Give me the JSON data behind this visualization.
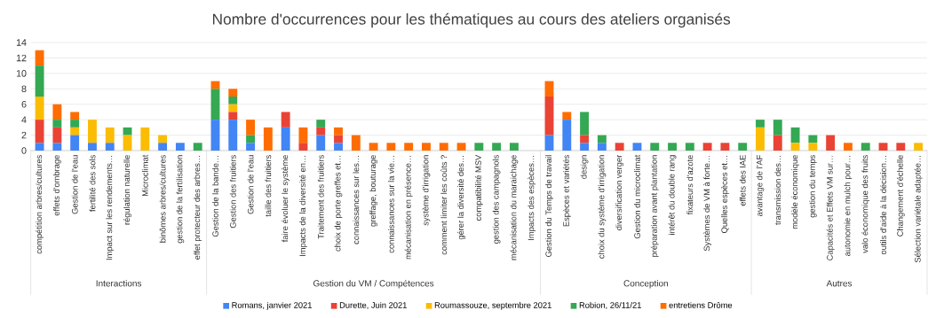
{
  "chart_data": {
    "type": "bar",
    "stacked": true,
    "title": "Nombre d'occurrences pour les thématiques au cours des ateliers organisés",
    "categories": [
      "compétition arbres/cultures",
      "effets d'ombrage",
      "Gestion de l'eau",
      "fertilité des sols",
      "Impact sur les rendements…",
      "régulation naturelle",
      "Microclimat",
      "binômes arbres/cultures",
      "gestion de la fertilisation",
      "effet protecteur des arbres…",
      "Gestion de la bande…",
      "Gestion des fruitiers",
      "Gestion de l'eau",
      "taille des fruitiers",
      "faire évoluer le système",
      "Impacts de la diversité en…",
      "Traitement des fruitiers",
      "choix de porte greffes et…",
      "connaissances sur les…",
      "greffage, bouturage",
      "connaissances sur la vie…",
      "mécanisation en présence…",
      "système d'irrigation",
      "comment limiter les coûts ?",
      "gérer la diversité des…",
      "compatibilité MSV",
      "gestion des campagnols",
      "mécanisation du maraichage",
      "Impacts des espèces…",
      "Gestion du Temps de travail",
      "Espèces et variétés",
      "design",
      "choix du système d'irrigation",
      "diversification verger",
      "Gestion du microclimat",
      "préparation avant plantation",
      "intérêt du double rang",
      "fixateurs d'azote",
      "Systèmes de VM à forte…",
      "Quelles espèces et…",
      "effets des IAE",
      "avantage de l'AF",
      "transmission des…",
      "modèle économique",
      "gestion du temps",
      "Capacités et Effets VM sur…",
      "autonomie en mulch pour…",
      "valo économique des fruits",
      "outils d'aide à la décision…",
      "Changement d'échelle",
      "Sélection variétale adaptée…"
    ],
    "series": [
      {
        "name": "Romans, janvier 2021",
        "color": "#4285f4",
        "values": [
          1,
          1,
          2,
          1,
          1,
          0,
          0,
          1,
          1,
          0,
          4,
          4,
          1,
          0,
          3,
          0,
          2,
          1,
          0,
          0,
          0,
          0,
          0,
          0,
          0,
          0,
          0,
          0,
          0,
          2,
          4,
          1,
          1,
          0,
          1,
          0,
          0,
          0,
          0,
          0,
          0,
          0,
          0,
          0,
          0,
          0,
          0,
          0,
          0,
          0,
          0
        ]
      },
      {
        "name": "Durette, Juin 2021",
        "color": "#ea4335",
        "values": [
          3,
          2,
          0,
          0,
          0,
          0,
          0,
          0,
          0,
          0,
          0,
          1,
          0,
          0,
          2,
          1,
          1,
          1,
          0,
          0,
          0,
          0,
          0,
          0,
          0,
          0,
          0,
          0,
          0,
          5,
          0,
          1,
          0,
          1,
          0,
          0,
          0,
          0,
          1,
          1,
          0,
          0,
          2,
          0,
          0,
          2,
          0,
          0,
          1,
          1,
          0
        ]
      },
      {
        "name": "Roumassouze, septembre 2021",
        "color": "#fbbc04",
        "values": [
          3,
          0,
          1,
          3,
          2,
          2,
          3,
          1,
          0,
          0,
          0,
          1,
          0,
          0,
          0,
          0,
          0,
          0,
          0,
          0,
          0,
          0,
          0,
          0,
          0,
          0,
          0,
          0,
          0,
          0,
          0,
          0,
          0,
          0,
          0,
          0,
          0,
          0,
          0,
          0,
          0,
          3,
          0,
          1,
          1,
          0,
          0,
          0,
          0,
          0,
          1
        ]
      },
      {
        "name": "Robion, 26/11/21",
        "color": "#34a853",
        "values": [
          4,
          1,
          1,
          0,
          0,
          1,
          0,
          0,
          0,
          1,
          4,
          1,
          1,
          0,
          0,
          0,
          1,
          0,
          0,
          0,
          0,
          0,
          0,
          0,
          0,
          1,
          1,
          1,
          0,
          0,
          0,
          3,
          1,
          0,
          0,
          1,
          1,
          1,
          0,
          0,
          1,
          1,
          2,
          2,
          1,
          0,
          0,
          1,
          0,
          0,
          0
        ]
      },
      {
        "name": "entretiens Drôme",
        "color": "#ff6d01",
        "values": [
          2,
          2,
          1,
          0,
          0,
          0,
          0,
          0,
          0,
          0,
          1,
          1,
          2,
          3,
          0,
          2,
          0,
          1,
          2,
          1,
          1,
          1,
          1,
          1,
          1,
          0,
          0,
          0,
          0,
          2,
          1,
          0,
          0,
          0,
          0,
          0,
          0,
          0,
          0,
          0,
          0,
          0,
          0,
          0,
          0,
          0,
          1,
          0,
          0,
          0,
          0
        ]
      }
    ],
    "ylim": [
      0,
      14
    ],
    "yticks": [
      0,
      2,
      4,
      6,
      8,
      10,
      12,
      14
    ],
    "grid": "y",
    "legend": "bottom",
    "annotations": [
      "Interactions",
      "Gestion du VM / Compétences",
      "Conception",
      "Autres"
    ]
  }
}
